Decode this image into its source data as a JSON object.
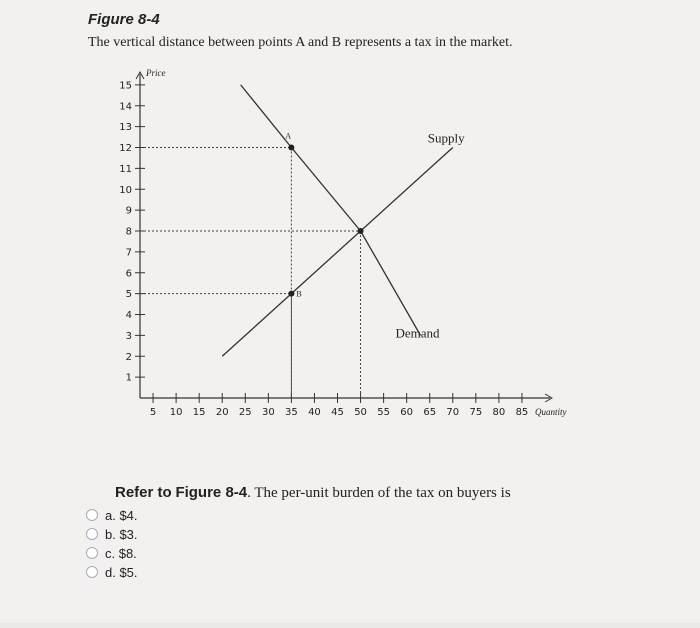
{
  "chart_data": {
    "type": "line",
    "title": "Figure 8-4",
    "subtitle": "The vertical distance between points A and B represents a tax in the market.",
    "x_label": "Quantity",
    "y_label": "Price",
    "xlim": [
      0,
      90
    ],
    "ylim": [
      0,
      16
    ],
    "xticks": [
      5,
      10,
      15,
      20,
      25,
      30,
      35,
      40,
      45,
      50,
      55,
      60,
      65,
      70,
      75,
      80,
      85
    ],
    "yticks": [
      1,
      2,
      3,
      4,
      5,
      6,
      7,
      8,
      9,
      10,
      11,
      12,
      13,
      14,
      15
    ],
    "series": [
      {
        "name": "Supply",
        "color": "#333333",
        "x": [
          20,
          35,
          50,
          70
        ],
        "values": [
          2,
          5,
          8,
          12
        ]
      },
      {
        "name": "Demand",
        "color": "#333333",
        "x": [
          24,
          35,
          50,
          63
        ],
        "values": [
          15,
          12,
          8,
          3
        ]
      }
    ],
    "points": [
      {
        "label": "A",
        "x": 35,
        "y": 12
      },
      {
        "label": "B",
        "x": 35,
        "y": 5
      },
      {
        "x": 50,
        "y": 8
      }
    ]
  },
  "question": {
    "prefix": "Refer to",
    "figure": "Figure 8-4",
    "text": ". The per-unit burden of the tax on buyers is"
  },
  "options": [
    "a. $4.",
    "b. $3.",
    "c. $8.",
    "d. $5."
  ]
}
